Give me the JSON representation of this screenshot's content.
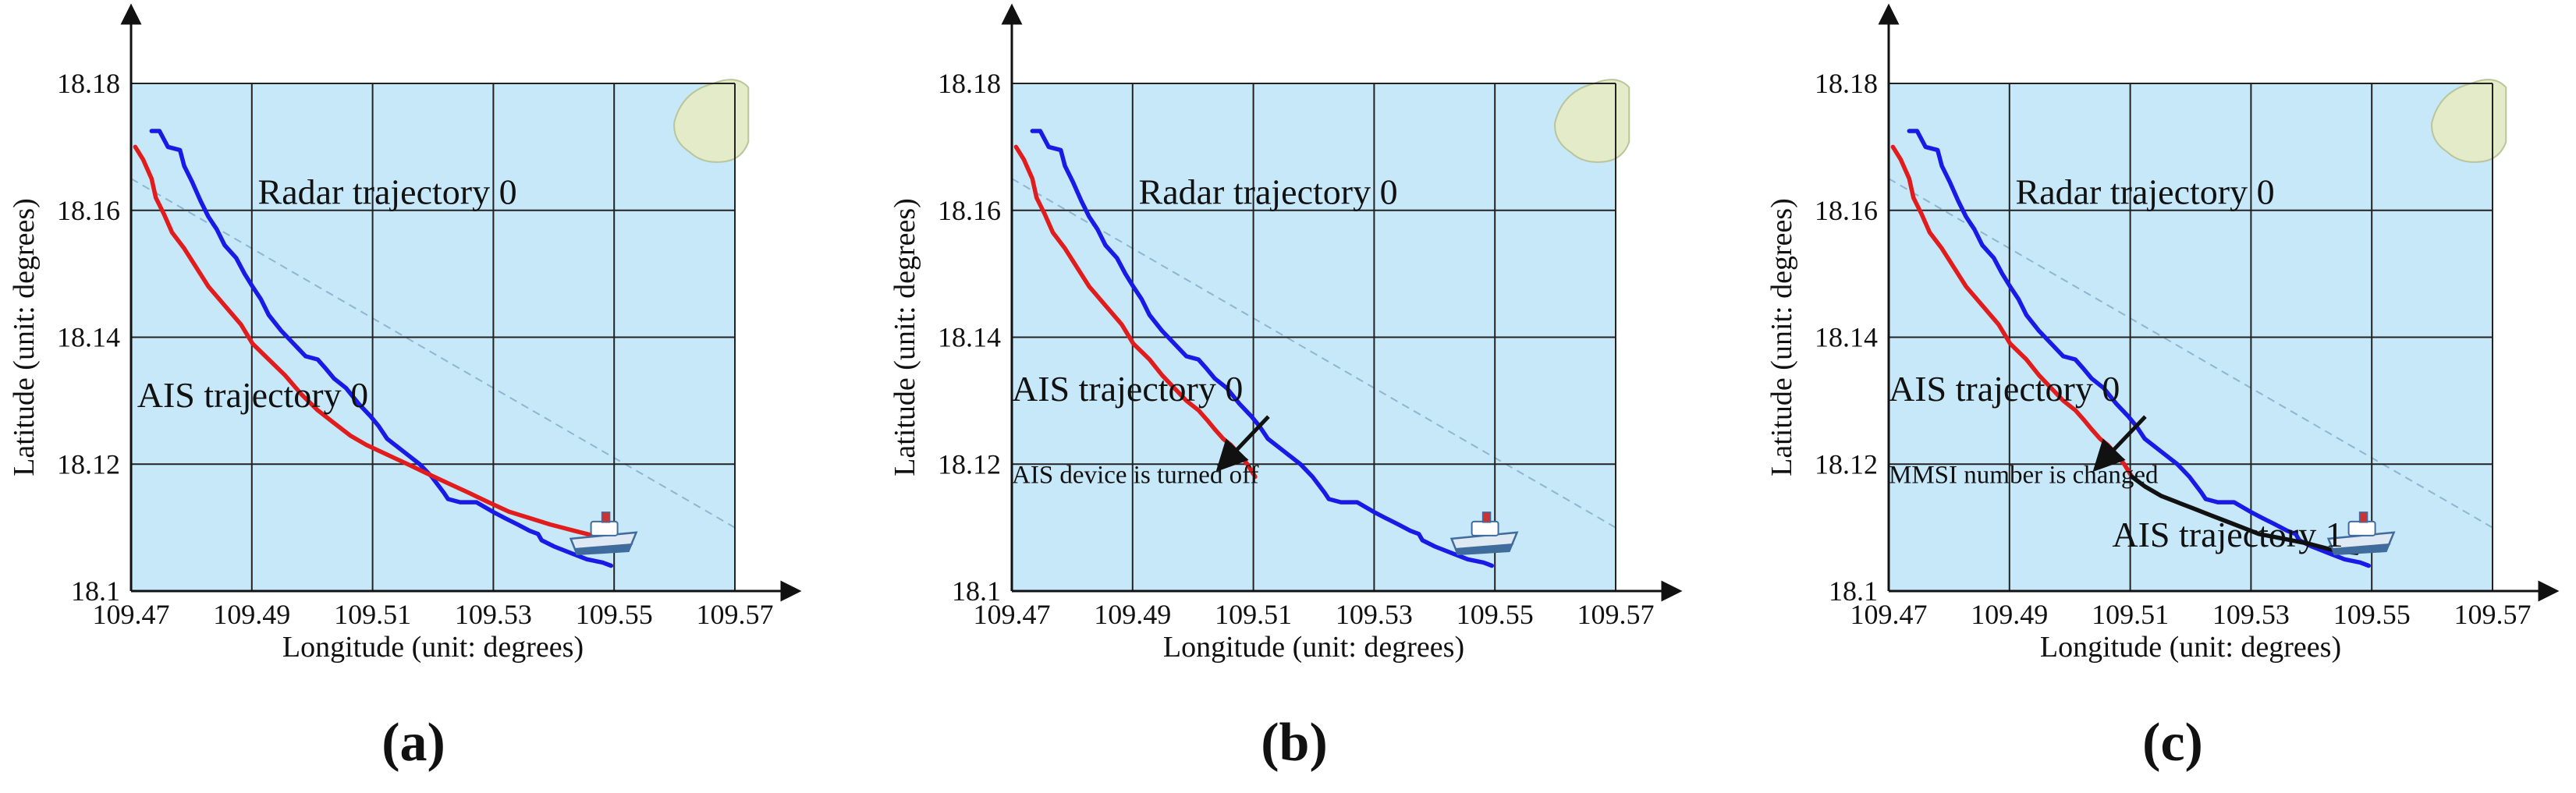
{
  "chart_data": [
    {
      "type": "line",
      "panel_label": "(a)",
      "xlabel": "Longitude (unit: degrees)",
      "ylabel": "Latitude (unit: degrees)",
      "xlim": [
        109.47,
        109.57
      ],
      "ylim": [
        18.1,
        18.18
      ],
      "xticks": [
        "109.47",
        "109.49",
        "109.51",
        "109.53",
        "109.55",
        "109.57"
      ],
      "yticks": [
        "18.1",
        "18.12",
        "18.14",
        "18.16",
        "18.18"
      ],
      "grid": true,
      "series": [
        {
          "name": "Radar trajectory 0",
          "color": "#1a1ae6",
          "x": [
            109.4734,
            109.4747,
            109.4761,
            109.4781,
            109.4788,
            109.4801,
            109.4815,
            109.4828,
            109.4842,
            109.4855,
            109.4874,
            109.4888,
            109.4901,
            109.4915,
            109.4928,
            109.4949,
            109.4969,
            109.4989,
            109.5009,
            109.5023,
            109.5036,
            109.5056,
            109.5077,
            109.5097,
            109.511,
            109.5124,
            109.5151,
            109.5178,
            109.5198,
            109.5218,
            109.5225,
            109.5245,
            109.5272,
            109.5299,
            109.5319,
            109.534,
            109.536,
            109.5374,
            109.538,
            109.5401,
            109.5428,
            109.5455,
            109.5481,
            109.5495
          ],
          "y": [
            18.1725,
            18.1725,
            18.17,
            18.1695,
            18.167,
            18.1645,
            18.1615,
            18.159,
            18.157,
            18.1545,
            18.1525,
            18.15,
            18.148,
            18.146,
            18.1435,
            18.141,
            18.139,
            18.137,
            18.1365,
            18.135,
            18.1335,
            18.132,
            18.1295,
            18.1275,
            18.126,
            18.124,
            18.122,
            18.12,
            18.118,
            18.1155,
            18.1145,
            18.114,
            18.114,
            18.1125,
            18.1115,
            18.1105,
            18.1095,
            18.109,
            18.108,
            18.107,
            18.106,
            18.105,
            18.1045,
            18.104
          ]
        },
        {
          "name": "AIS trajectory 0",
          "color": "#e01c1c",
          "x": [
            109.4707,
            109.472,
            109.4734,
            109.4741,
            109.4754,
            109.4768,
            109.4788,
            109.4808,
            109.4828,
            109.4855,
            109.4882,
            109.4901,
            109.4928,
            109.4955,
            109.4982,
            109.5009,
            109.5036,
            109.5063,
            109.509,
            109.5124,
            109.5158,
            109.5191,
            109.5225,
            109.5259,
            109.5292,
            109.5326,
            109.536,
            109.5394,
            109.5414,
            109.5434,
            109.5455,
            109.5475
          ],
          "y": [
            18.17,
            18.168,
            18.165,
            18.162,
            18.1595,
            18.1565,
            18.154,
            18.151,
            18.148,
            18.145,
            18.142,
            18.139,
            18.1365,
            18.134,
            18.131,
            18.1285,
            18.1265,
            18.1245,
            18.123,
            18.1215,
            18.12,
            18.1185,
            18.117,
            18.1155,
            18.114,
            18.1125,
            18.1115,
            18.1105,
            18.11,
            18.1095,
            18.109,
            18.1085
          ]
        }
      ],
      "annotations": [
        {
          "text": "Radar trajectory 0",
          "x": 109.491,
          "y": 18.161
        },
        {
          "text": "AIS trajectory 0",
          "x": 109.471,
          "y": 18.129
        }
      ]
    },
    {
      "type": "line",
      "panel_label": "(b)",
      "xlabel": "Longitude (unit: degrees)",
      "ylabel": "Latitude (unit: degrees)",
      "xlim": [
        109.47,
        109.57
      ],
      "ylim": [
        18.1,
        18.18
      ],
      "xticks": [
        "109.47",
        "109.49",
        "109.51",
        "109.53",
        "109.55",
        "109.57"
      ],
      "yticks": [
        "18.1",
        "18.12",
        "18.14",
        "18.16",
        "18.18"
      ],
      "grid": true,
      "series": [
        {
          "name": "Radar trajectory 0",
          "color": "#1a1ae6",
          "x": [
            109.4734,
            109.4747,
            109.4761,
            109.4781,
            109.4788,
            109.4801,
            109.4815,
            109.4828,
            109.4842,
            109.4855,
            109.4874,
            109.4888,
            109.4901,
            109.4915,
            109.4928,
            109.4949,
            109.4969,
            109.4989,
            109.5009,
            109.5023,
            109.5036,
            109.5056,
            109.5077,
            109.5097,
            109.511,
            109.5124,
            109.5151,
            109.5178,
            109.5198,
            109.5218,
            109.5225,
            109.5245,
            109.5272,
            109.5299,
            109.5319,
            109.534,
            109.536,
            109.5374,
            109.538,
            109.5401,
            109.5428,
            109.5455,
            109.5481,
            109.5495
          ],
          "y": [
            18.1725,
            18.1725,
            18.17,
            18.1695,
            18.167,
            18.1645,
            18.1615,
            18.159,
            18.157,
            18.1545,
            18.1525,
            18.15,
            18.148,
            18.146,
            18.1435,
            18.141,
            18.139,
            18.137,
            18.1365,
            18.135,
            18.1335,
            18.132,
            18.1295,
            18.1275,
            18.126,
            18.124,
            18.122,
            18.12,
            18.118,
            18.1155,
            18.1145,
            18.114,
            18.114,
            18.1125,
            18.1115,
            18.1105,
            18.1095,
            18.109,
            18.108,
            18.107,
            18.106,
            18.105,
            18.1045,
            18.104
          ]
        },
        {
          "name": "AIS trajectory 0",
          "color": "#e01c1c",
          "x": [
            109.4707,
            109.472,
            109.4734,
            109.4741,
            109.4754,
            109.4768,
            109.4788,
            109.4808,
            109.4828,
            109.4855,
            109.4882,
            109.4901,
            109.4928,
            109.4949,
            109.4969,
            109.4989,
            109.5009,
            109.5023,
            109.5036,
            109.505,
            109.5063,
            109.5077,
            109.509,
            109.5103
          ],
          "y": [
            18.17,
            18.168,
            18.165,
            18.162,
            18.1595,
            18.1565,
            18.154,
            18.151,
            18.148,
            18.145,
            18.142,
            18.139,
            18.1365,
            18.134,
            18.132,
            18.13,
            18.1285,
            18.127,
            18.1255,
            18.124,
            18.123,
            18.1215,
            18.12,
            18.118
          ]
        }
      ],
      "annotations": [
        {
          "text": "Radar trajectory 0",
          "x": 109.491,
          "y": 18.161
        },
        {
          "text": "AIS trajectory 0",
          "x": 109.47,
          "y": 18.13
        },
        {
          "text": "AIS device is turned off",
          "x": 109.47,
          "y": 18.117
        }
      ]
    },
    {
      "type": "line",
      "panel_label": "(c)",
      "xlabel": "Longitude (unit: degrees)",
      "ylabel": "Latitude (unit: degrees)",
      "xlim": [
        109.47,
        109.57
      ],
      "ylim": [
        18.1,
        18.18
      ],
      "xticks": [
        "109.47",
        "109.49",
        "109.51",
        "109.53",
        "109.55",
        "109.57"
      ],
      "yticks": [
        "18.1",
        "18.12",
        "18.14",
        "18.16",
        "18.18"
      ],
      "grid": true,
      "series": [
        {
          "name": "Radar trajectory 0",
          "color": "#1a1ae6",
          "x": [
            109.4734,
            109.4747,
            109.4761,
            109.4781,
            109.4788,
            109.4801,
            109.4815,
            109.4828,
            109.4842,
            109.4855,
            109.4874,
            109.4888,
            109.4901,
            109.4915,
            109.4928,
            109.4949,
            109.4969,
            109.4989,
            109.5009,
            109.5023,
            109.5036,
            109.5056,
            109.5077,
            109.5097,
            109.511,
            109.5124,
            109.5151,
            109.5178,
            109.5198,
            109.5218,
            109.5225,
            109.5245,
            109.5272,
            109.5299,
            109.5319,
            109.534,
            109.536,
            109.5374,
            109.538,
            109.5401,
            109.5428,
            109.5455,
            109.5481,
            109.5495
          ],
          "y": [
            18.1725,
            18.1725,
            18.17,
            18.1695,
            18.167,
            18.1645,
            18.1615,
            18.159,
            18.157,
            18.1545,
            18.1525,
            18.15,
            18.148,
            18.146,
            18.1435,
            18.141,
            18.139,
            18.137,
            18.1365,
            18.135,
            18.1335,
            18.132,
            18.1295,
            18.1275,
            18.126,
            18.124,
            18.122,
            18.12,
            18.118,
            18.1155,
            18.1145,
            18.114,
            18.114,
            18.1125,
            18.1115,
            18.1105,
            18.1095,
            18.109,
            18.108,
            18.107,
            18.106,
            18.105,
            18.1045,
            18.104
          ]
        },
        {
          "name": "AIS trajectory 0",
          "color": "#e01c1c",
          "x": [
            109.4707,
            109.472,
            109.4734,
            109.4741,
            109.4754,
            109.4768,
            109.4788,
            109.4808,
            109.4828,
            109.4855,
            109.4882,
            109.4901,
            109.4928,
            109.4949,
            109.4969,
            109.4989,
            109.5009,
            109.5023,
            109.5036,
            109.505,
            109.5063,
            109.5077,
            109.509,
            109.5103
          ],
          "y": [
            18.17,
            18.168,
            18.165,
            18.162,
            18.1595,
            18.1565,
            18.154,
            18.151,
            18.148,
            18.145,
            18.142,
            18.139,
            18.1365,
            18.134,
            18.132,
            18.13,
            18.1285,
            18.127,
            18.1255,
            18.124,
            18.123,
            18.1215,
            18.12,
            18.118
          ]
        },
        {
          "name": "AIS trajectory 1",
          "color": "#111111",
          "x": [
            109.5103,
            109.5124,
            109.5151,
            109.5178,
            109.5205,
            109.5232,
            109.5259,
            109.5286,
            109.5313,
            109.534,
            109.5367,
            109.5394,
            109.5414,
            109.5434,
            109.5455,
            109.5475
          ],
          "y": [
            18.118,
            18.1165,
            18.115,
            18.114,
            18.113,
            18.112,
            18.111,
            18.11,
            18.109,
            18.1085,
            18.108,
            18.1075,
            18.107,
            18.1065,
            18.1062,
            18.106
          ]
        }
      ],
      "annotations": [
        {
          "text": "Radar trajectory 0",
          "x": 109.491,
          "y": 18.161
        },
        {
          "text": "AIS trajectory 0",
          "x": 109.47,
          "y": 18.13
        },
        {
          "text": "MMSI number is changed",
          "x": 109.47,
          "y": 18.117
        },
        {
          "text": "AIS trajectory 1",
          "x": 109.507,
          "y": 18.107
        }
      ]
    }
  ]
}
